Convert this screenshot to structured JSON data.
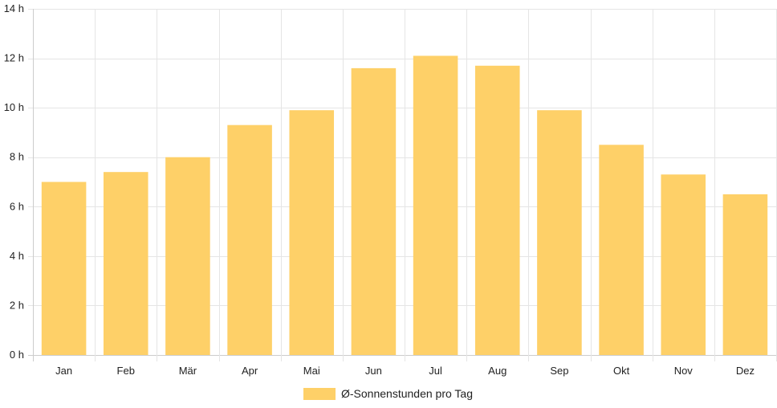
{
  "chart_data": {
    "type": "bar",
    "categories": [
      "Jan",
      "Feb",
      "Mär",
      "Apr",
      "Mai",
      "Jun",
      "Jul",
      "Aug",
      "Sep",
      "Okt",
      "Nov",
      "Dez"
    ],
    "series": [
      {
        "name": "Ø-Sonnenstunden pro Tag",
        "values": [
          7.0,
          7.4,
          8.0,
          9.3,
          9.9,
          11.6,
          12.1,
          11.7,
          9.9,
          8.5,
          7.3,
          6.5
        ],
        "color": "#fed068"
      }
    ],
    "yticks": [
      {
        "value": 0,
        "label": "0 h"
      },
      {
        "value": 2,
        "label": "2 h"
      },
      {
        "value": 4,
        "label": "4 h"
      },
      {
        "value": 6,
        "label": "6 h"
      },
      {
        "value": 8,
        "label": "8 h"
      },
      {
        "value": 10,
        "label": "10 h"
      },
      {
        "value": 12,
        "label": "12 h"
      },
      {
        "value": 14,
        "label": "14 h"
      }
    ],
    "ylim": [
      0,
      14
    ],
    "grid": true,
    "legend": "bottom-center",
    "grid_color": "#e5e5e5",
    "axis_color": "#cccccc"
  }
}
